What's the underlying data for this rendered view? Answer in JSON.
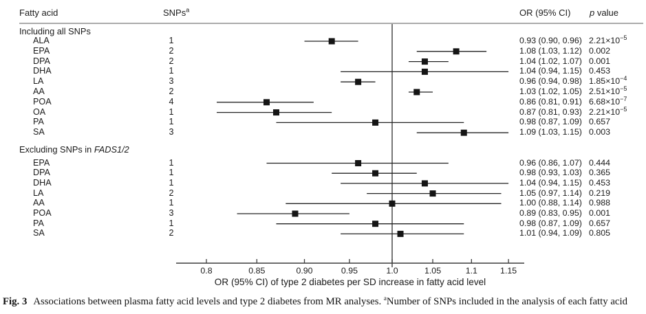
{
  "figure": {
    "caption_label": "Fig. 3",
    "caption_text": "Associations between plasma fatty acid levels and type 2 diabetes from MR analyses. ",
    "caption_sup": "a",
    "caption_note": "Number of SNPs included in the analysis of each fatty acid"
  },
  "chart_data": {
    "type": "forest",
    "x_scale": "log",
    "ref_line": 1.0,
    "xlabel": "OR (95% CI) of type 2 diabetes per SD increase in fatty acid level",
    "x_ticks": [
      "0.8",
      "0.85",
      "0.90",
      "0.95",
      "1.0",
      "1.05",
      "1.1",
      "1.15"
    ],
    "x_tick_values": [
      0.8,
      0.85,
      0.9,
      0.95,
      1.0,
      1.05,
      1.1,
      1.15
    ],
    "xlim": [
      0.77,
      1.17
    ],
    "columns": {
      "fatty_acid": "Fatty acid",
      "snps": "SNPs",
      "snps_sup": "a",
      "or_ci": "OR (95% CI)",
      "p_italic": "p",
      "p_rest": "value"
    },
    "sections": [
      {
        "title_prefix": "Including all SNPs",
        "title_italic": "",
        "rows": [
          {
            "label": "ALA",
            "snps": "1",
            "or": 0.93,
            "lo": 0.9,
            "hi": 0.96,
            "or_ci": "0.93 (0.90, 0.96)",
            "p_base": "2.21×10",
            "p_exp": "−5"
          },
          {
            "label": "EPA",
            "snps": "2",
            "or": 1.08,
            "lo": 1.03,
            "hi": 1.12,
            "or_ci": "1.08 (1.03, 1.12)",
            "p_base": "0.002",
            "p_exp": ""
          },
          {
            "label": "DPA",
            "snps": "2",
            "or": 1.04,
            "lo": 1.02,
            "hi": 1.07,
            "or_ci": "1.04 (1.02, 1.07)",
            "p_base": "0.001",
            "p_exp": ""
          },
          {
            "label": "DHA",
            "snps": "1",
            "or": 1.04,
            "lo": 0.94,
            "hi": 1.15,
            "or_ci": "1.04 (0.94, 1.15)",
            "p_base": "0.453",
            "p_exp": ""
          },
          {
            "label": "LA",
            "snps": "3",
            "or": 0.96,
            "lo": 0.94,
            "hi": 0.98,
            "or_ci": "0.96 (0.94, 0.98)",
            "p_base": "1.85×10",
            "p_exp": "−4"
          },
          {
            "label": "AA",
            "snps": "2",
            "or": 1.03,
            "lo": 1.02,
            "hi": 1.05,
            "or_ci": "1.03 (1.02, 1.05)",
            "p_base": "2.51×10",
            "p_exp": "−5"
          },
          {
            "label": "POA",
            "snps": "4",
            "or": 0.86,
            "lo": 0.81,
            "hi": 0.91,
            "or_ci": "0.86 (0.81, 0.91)",
            "p_base": "6.68×10",
            "p_exp": "−7"
          },
          {
            "label": "OA",
            "snps": "1",
            "or": 0.87,
            "lo": 0.81,
            "hi": 0.93,
            "or_ci": "0.87 (0.81, 0.93)",
            "p_base": "2.21×10",
            "p_exp": "−5"
          },
          {
            "label": "PA",
            "snps": "1",
            "or": 0.98,
            "lo": 0.87,
            "hi": 1.09,
            "or_ci": "0.98 (0.87, 1.09)",
            "p_base": "0.657",
            "p_exp": ""
          },
          {
            "label": "SA",
            "snps": "3",
            "or": 1.09,
            "lo": 1.03,
            "hi": 1.15,
            "or_ci": "1.09 (1.03, 1.15)",
            "p_base": "0.003",
            "p_exp": ""
          }
        ]
      },
      {
        "title_prefix": "Excluding SNPs in ",
        "title_italic": "FADS1/2",
        "rows": [
          {
            "label": "EPA",
            "snps": "1",
            "or": 0.96,
            "lo": 0.86,
            "hi": 1.07,
            "or_ci": "0.96 (0.86, 1.07)",
            "p_base": "0.444",
            "p_exp": ""
          },
          {
            "label": "DPA",
            "snps": "1",
            "or": 0.98,
            "lo": 0.93,
            "hi": 1.03,
            "or_ci": "0.98 (0.93, 1.03)",
            "p_base": "0.365",
            "p_exp": ""
          },
          {
            "label": "DHA",
            "snps": "1",
            "or": 1.04,
            "lo": 0.94,
            "hi": 1.15,
            "or_ci": "1.04 (0.94, 1.15)",
            "p_base": "0.453",
            "p_exp": ""
          },
          {
            "label": "LA",
            "snps": "2",
            "or": 1.05,
            "lo": 0.97,
            "hi": 1.14,
            "or_ci": "1.05 (0.97, 1.14)",
            "p_base": "0.219",
            "p_exp": ""
          },
          {
            "label": "AA",
            "snps": "1",
            "or": 1.0,
            "lo": 0.88,
            "hi": 1.14,
            "or_ci": "1.00 (0.88, 1.14)",
            "p_base": "0.988",
            "p_exp": ""
          },
          {
            "label": "POA",
            "snps": "3",
            "or": 0.89,
            "lo": 0.83,
            "hi": 0.95,
            "or_ci": "0.89 (0.83, 0.95)",
            "p_base": "0.001",
            "p_exp": ""
          },
          {
            "label": "PA",
            "snps": "1",
            "or": 0.98,
            "lo": 0.87,
            "hi": 1.09,
            "or_ci": "0.98 (0.87, 1.09)",
            "p_base": "0.657",
            "p_exp": ""
          },
          {
            "label": "SA",
            "snps": "2",
            "or": 1.01,
            "lo": 0.94,
            "hi": 1.09,
            "or_ci": "1.01 (0.94, 1.09)",
            "p_base": "0.805",
            "p_exp": ""
          }
        ]
      }
    ]
  }
}
